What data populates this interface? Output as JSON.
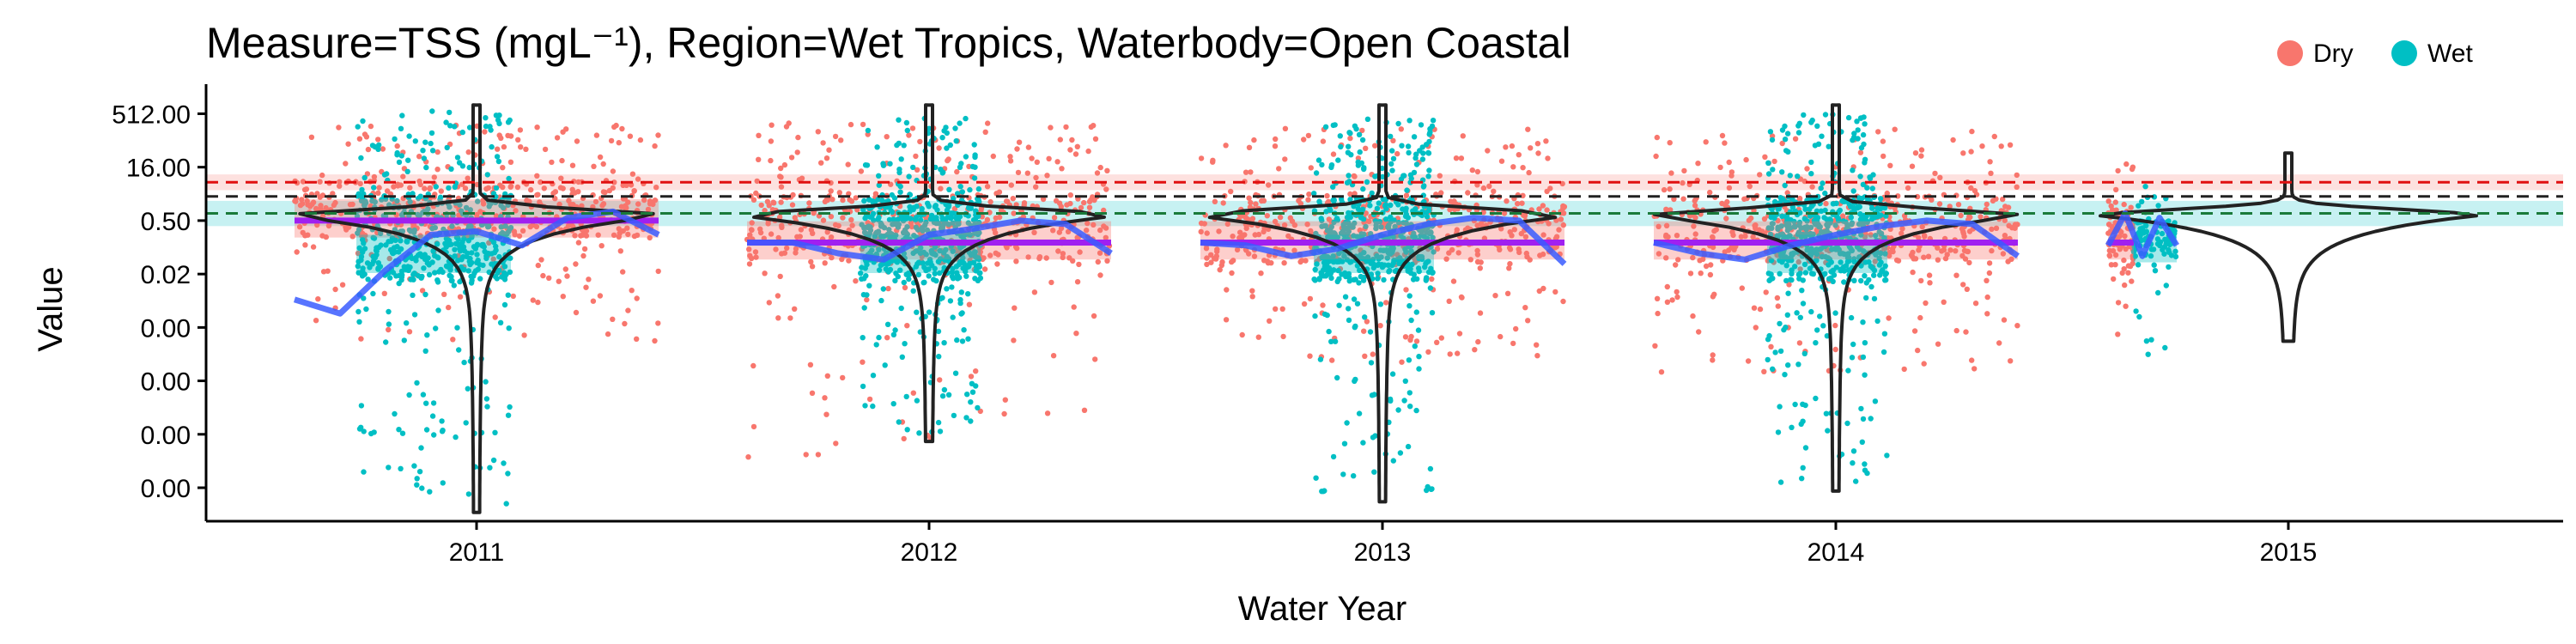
{
  "chart_data": {
    "type": "scatter",
    "title": "Measure=TSS (mgL⁻¹), Region=Wet Tropics, Waterbody=Open Coastal",
    "xlabel": "Water Year",
    "ylabel": "Value",
    "y_scale": "log2",
    "y_tick_labels": [
      "512.00",
      "16.00",
      "0.50",
      "0.02",
      "0.00",
      "0.00",
      "0.00",
      "0.00"
    ],
    "y_tick_values": [
      512,
      16,
      0.5,
      0.0156,
      0.000488,
      1.53e-05,
      4.77e-07,
      1.49e-08
    ],
    "ylim": [
      1.7e-09,
      2000
    ],
    "categories": [
      "2011",
      "2012",
      "2013",
      "2014",
      "2015"
    ],
    "legend": {
      "position": "top-right",
      "items": [
        {
          "name": "Dry",
          "color": "#F8766D"
        },
        {
          "name": "Wet",
          "color": "#00BFC4"
        }
      ]
    },
    "reference_lines": [
      {
        "value": 6.0,
        "color": "#e01010",
        "style": "dashed",
        "band": [
          3.6,
          10.0
        ],
        "band_color": "#F8766D"
      },
      {
        "value": 2.4,
        "color": "#222222",
        "style": "dashed"
      },
      {
        "value": 0.8,
        "color": "#1a7a3a",
        "style": "dashed",
        "band": [
          0.35,
          1.8
        ],
        "band_color": "#00BFC4"
      }
    ],
    "years": [
      {
        "year": "2011",
        "dry": {
          "median": 0.5,
          "max": 250,
          "min": 0.0002
        },
        "wet": {
          "median": 0.05,
          "max": 800,
          "min": 5e-09
        },
        "trend": [
          0.003,
          0.0012,
          0.02,
          0.2,
          0.25,
          0.1,
          0.6,
          0.9,
          0.2
        ]
      },
      {
        "year": "2012",
        "dry": {
          "median": 0.12,
          "max": 300,
          "min": 1e-07
        },
        "wet": {
          "median": 0.05,
          "max": 400,
          "min": 5e-07
        },
        "trend": [
          0.12,
          0.12,
          0.06,
          0.04,
          0.2,
          0.3,
          0.5,
          0.4,
          0.06
        ]
      },
      {
        "year": "2013",
        "dry": {
          "median": 0.12,
          "max": 220,
          "min": 5e-05
        },
        "wet": {
          "median": 0.05,
          "max": 400,
          "min": 1e-08
        },
        "trend": [
          0.12,
          0.1,
          0.05,
          0.08,
          0.2,
          0.4,
          0.6,
          0.5,
          0.03
        ]
      },
      {
        "year": "2014",
        "dry": {
          "median": 0.12,
          "max": 200,
          "min": 2e-05
        },
        "wet": {
          "median": 0.05,
          "max": 500,
          "min": 2e-08
        },
        "trend": [
          0.12,
          0.06,
          0.04,
          0.1,
          0.2,
          0.35,
          0.5,
          0.4,
          0.05
        ]
      },
      {
        "year": "2015",
        "dry": {
          "median": 0.12,
          "max": 20,
          "min": 0.0003
        },
        "wet": {
          "median": 0.1,
          "max": 5,
          "min": 5e-05
        },
        "trend": [
          0.1,
          0.8,
          0.05,
          0.6,
          0.1
        ]
      }
    ]
  }
}
